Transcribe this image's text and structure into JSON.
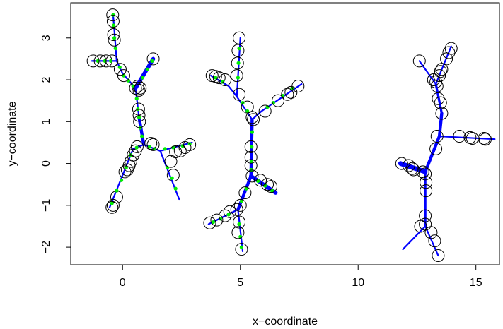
{
  "chart_data": {
    "type": "scatter",
    "title": "",
    "xlabel": "x−coordinate",
    "ylabel": "y−coordinate",
    "xlim": [
      -2.2,
      16.0
    ],
    "ylim": [
      -2.42,
      3.84
    ],
    "x_ticks": [
      0,
      5,
      10,
      15
    ],
    "x_tick_labels": [
      "0",
      "5",
      "10",
      "15"
    ],
    "y_ticks": [
      -2,
      -1,
      0,
      1,
      2,
      3
    ],
    "y_tick_labels": [
      "−2",
      "−1",
      "0",
      "1",
      "2",
      "3"
    ],
    "grid": false,
    "legend": "none",
    "colors": {
      "edge": "#0000ff",
      "dots": "#00ee00",
      "points": "#000000"
    },
    "edges": [
      {
        "x1": -0.4,
        "y1": 3.55,
        "x2": -0.25,
        "y2": 2.45,
        "w": 2
      },
      {
        "x1": -1.3,
        "y1": 2.45,
        "x2": -0.25,
        "y2": 2.45,
        "w": 2
      },
      {
        "x1": -0.25,
        "y1": 2.45,
        "x2": 0.0,
        "y2": 2.15,
        "w": 2
      },
      {
        "x1": 0.0,
        "y1": 2.15,
        "x2": 0.55,
        "y2": 1.8,
        "w": 2
      },
      {
        "x1": 0.55,
        "y1": 1.8,
        "x2": 1.3,
        "y2": 2.5,
        "w": 5
      },
      {
        "x1": 0.55,
        "y1": 1.8,
        "x2": 0.7,
        "y2": 1.1,
        "w": 2
      },
      {
        "x1": 0.7,
        "y1": 1.1,
        "x2": 0.9,
        "y2": 0.45,
        "w": 4
      },
      {
        "x1": 0.9,
        "y1": 0.45,
        "x2": 1.6,
        "y2": 0.3,
        "w": 2
      },
      {
        "x1": 1.6,
        "y1": 0.3,
        "x2": 2.95,
        "y2": 0.5,
        "w": 2
      },
      {
        "x1": 1.6,
        "y1": 0.3,
        "x2": 2.4,
        "y2": -0.85,
        "w": 2
      },
      {
        "x1": 0.9,
        "y1": 0.45,
        "x2": 0.45,
        "y2": 0.35,
        "w": 2
      },
      {
        "x1": 0.45,
        "y1": 0.35,
        "x2": -0.55,
        "y2": -1.05,
        "w": 2
      },
      {
        "x1": 5.0,
        "y1": 3.0,
        "x2": 4.85,
        "y2": 1.6,
        "w": 2
      },
      {
        "x1": 3.75,
        "y1": 2.1,
        "x2": 4.5,
        "y2": 1.85,
        "w": 2
      },
      {
        "x1": 4.5,
        "y1": 1.85,
        "x2": 4.85,
        "y2": 1.6,
        "w": 2
      },
      {
        "x1": 4.85,
        "y1": 1.6,
        "x2": 5.5,
        "y2": 1.05,
        "w": 2
      },
      {
        "x1": 7.6,
        "y1": 1.9,
        "x2": 5.9,
        "y2": 1.25,
        "w": 2
      },
      {
        "x1": 5.9,
        "y1": 1.25,
        "x2": 5.5,
        "y2": 1.05,
        "w": 2
      },
      {
        "x1": 5.5,
        "y1": 1.05,
        "x2": 5.45,
        "y2": -0.3,
        "w": 4
      },
      {
        "x1": 5.45,
        "y1": -0.3,
        "x2": 6.5,
        "y2": -0.7,
        "w": 5
      },
      {
        "x1": 5.45,
        "y1": -0.3,
        "x2": 4.9,
        "y2": -1.1,
        "w": 4
      },
      {
        "x1": 4.9,
        "y1": -1.1,
        "x2": 3.65,
        "y2": -1.45,
        "w": 2
      },
      {
        "x1": 4.9,
        "y1": -1.1,
        "x2": 5.1,
        "y2": -2.1,
        "w": 2
      },
      {
        "x1": 12.6,
        "y1": 2.45,
        "x2": 13.3,
        "y2": 1.9,
        "w": 2
      },
      {
        "x1": 13.95,
        "y1": 2.8,
        "x2": 13.3,
        "y2": 1.9,
        "w": 2
      },
      {
        "x1": 13.3,
        "y1": 1.9,
        "x2": 13.55,
        "y2": 1.2,
        "w": 3
      },
      {
        "x1": 13.55,
        "y1": 1.2,
        "x2": 13.45,
        "y2": 0.65,
        "w": 4
      },
      {
        "x1": 13.45,
        "y1": 0.65,
        "x2": 15.8,
        "y2": 0.58,
        "w": 2
      },
      {
        "x1": 13.45,
        "y1": 0.65,
        "x2": 12.85,
        "y2": -0.2,
        "w": 4
      },
      {
        "x1": 11.8,
        "y1": 0.0,
        "x2": 12.85,
        "y2": -0.2,
        "w": 6
      },
      {
        "x1": 12.85,
        "y1": -0.2,
        "x2": 12.85,
        "y2": -1.5,
        "w": 3
      },
      {
        "x1": 12.85,
        "y1": -1.5,
        "x2": 11.9,
        "y2": -2.05,
        "w": 2
      },
      {
        "x1": 12.85,
        "y1": -1.5,
        "x2": 13.4,
        "y2": -2.2,
        "w": 2
      }
    ],
    "points": [
      {
        "x": -0.42,
        "y": 3.55
      },
      {
        "x": -0.4,
        "y": 3.4
      },
      {
        "x": -0.38,
        "y": 3.08
      },
      {
        "x": -0.35,
        "y": 2.95
      },
      {
        "x": -1.25,
        "y": 2.45
      },
      {
        "x": -0.95,
        "y": 2.45
      },
      {
        "x": -0.7,
        "y": 2.45
      },
      {
        "x": -0.45,
        "y": 2.45
      },
      {
        "x": -0.1,
        "y": 2.25
      },
      {
        "x": 0.05,
        "y": 2.1
      },
      {
        "x": 1.3,
        "y": 2.5
      },
      {
        "x": 0.75,
        "y": 1.8
      },
      {
        "x": 0.65,
        "y": 1.85
      },
      {
        "x": 0.55,
        "y": 1.8
      },
      {
        "x": 0.7,
        "y": 1.75
      },
      {
        "x": 0.68,
        "y": 1.3
      },
      {
        "x": 0.7,
        "y": 1.15
      },
      {
        "x": 0.72,
        "y": 1.0
      },
      {
        "x": 1.2,
        "y": 0.48
      },
      {
        "x": 1.3,
        "y": 0.45
      },
      {
        "x": 0.62,
        "y": 0.4
      },
      {
        "x": 2.85,
        "y": 0.45
      },
      {
        "x": 2.65,
        "y": 0.38
      },
      {
        "x": 2.45,
        "y": 0.3
      },
      {
        "x": 2.25,
        "y": 0.28
      },
      {
        "x": 2.05,
        "y": 0.05
      },
      {
        "x": 2.15,
        "y": -0.28
      },
      {
        "x": 0.55,
        "y": 0.3
      },
      {
        "x": 0.45,
        "y": 0.2
      },
      {
        "x": 0.35,
        "y": 0.05
      },
      {
        "x": 0.28,
        "y": -0.05
      },
      {
        "x": 0.2,
        "y": -0.15
      },
      {
        "x": 0.1,
        "y": -0.2
      },
      {
        "x": -0.25,
        "y": -0.8
      },
      {
        "x": -0.4,
        "y": -1.0
      },
      {
        "x": -0.45,
        "y": -1.05
      },
      {
        "x": 4.95,
        "y": 3.0
      },
      {
        "x": 4.9,
        "y": 2.7
      },
      {
        "x": 4.88,
        "y": 2.4
      },
      {
        "x": 4.85,
        "y": 2.1
      },
      {
        "x": 3.8,
        "y": 2.1
      },
      {
        "x": 3.95,
        "y": 2.08
      },
      {
        "x": 4.1,
        "y": 2.05
      },
      {
        "x": 4.35,
        "y": 2.0
      },
      {
        "x": 4.95,
        "y": 1.65
      },
      {
        "x": 5.3,
        "y": 1.35
      },
      {
        "x": 7.45,
        "y": 1.85
      },
      {
        "x": 7.15,
        "y": 1.7
      },
      {
        "x": 7.0,
        "y": 1.65
      },
      {
        "x": 6.6,
        "y": 1.5
      },
      {
        "x": 6.05,
        "y": 1.25
      },
      {
        "x": 5.5,
        "y": 1.1
      },
      {
        "x": 5.55,
        "y": 1.05
      },
      {
        "x": 5.45,
        "y": 0.4
      },
      {
        "x": 5.45,
        "y": 0.15
      },
      {
        "x": 5.45,
        "y": -0.05
      },
      {
        "x": 5.5,
        "y": -0.3
      },
      {
        "x": 5.85,
        "y": -0.4
      },
      {
        "x": 6.15,
        "y": -0.5
      },
      {
        "x": 6.3,
        "y": -0.55
      },
      {
        "x": 5.2,
        "y": -0.7
      },
      {
        "x": 5.0,
        "y": -1.0
      },
      {
        "x": 4.85,
        "y": -1.1
      },
      {
        "x": 4.55,
        "y": -1.15
      },
      {
        "x": 4.35,
        "y": -1.25
      },
      {
        "x": 4.0,
        "y": -1.35
      },
      {
        "x": 3.7,
        "y": -1.42
      },
      {
        "x": 4.95,
        "y": -1.4
      },
      {
        "x": 4.9,
        "y": -1.65
      },
      {
        "x": 5.05,
        "y": -2.05
      },
      {
        "x": 12.6,
        "y": 2.45
      },
      {
        "x": 13.95,
        "y": 2.75
      },
      {
        "x": 13.85,
        "y": 2.65
      },
      {
        "x": 13.75,
        "y": 2.5
      },
      {
        "x": 13.55,
        "y": 2.25
      },
      {
        "x": 13.5,
        "y": 2.2
      },
      {
        "x": 13.45,
        "y": 2.1
      },
      {
        "x": 13.2,
        "y": 2.0
      },
      {
        "x": 13.3,
        "y": 1.95
      },
      {
        "x": 13.35,
        "y": 1.85
      },
      {
        "x": 13.4,
        "y": 1.55
      },
      {
        "x": 13.5,
        "y": 1.45
      },
      {
        "x": 13.55,
        "y": 1.2
      },
      {
        "x": 14.3,
        "y": 0.65
      },
      {
        "x": 14.75,
        "y": 0.62
      },
      {
        "x": 14.85,
        "y": 0.6
      },
      {
        "x": 15.35,
        "y": 0.6
      },
      {
        "x": 15.4,
        "y": 0.58
      },
      {
        "x": 13.35,
        "y": 0.65
      },
      {
        "x": 13.3,
        "y": 0.35
      },
      {
        "x": 11.85,
        "y": 0.0
      },
      {
        "x": 12.15,
        "y": -0.05
      },
      {
        "x": 12.3,
        "y": -0.12
      },
      {
        "x": 12.35,
        "y": -0.15
      },
      {
        "x": 12.75,
        "y": -0.2
      },
      {
        "x": 12.85,
        "y": -0.25
      },
      {
        "x": 12.88,
        "y": -0.45
      },
      {
        "x": 12.88,
        "y": -0.65
      },
      {
        "x": 12.85,
        "y": -1.25
      },
      {
        "x": 12.85,
        "y": -1.45
      },
      {
        "x": 12.65,
        "y": -1.5
      },
      {
        "x": 13.1,
        "y": -1.65
      },
      {
        "x": 13.25,
        "y": -1.85
      },
      {
        "x": 13.4,
        "y": -2.2
      }
    ],
    "dots": [
      {
        "x": -0.4,
        "y": 3.55
      },
      {
        "x": -0.38,
        "y": 3.3
      },
      {
        "x": -0.35,
        "y": 3.0
      },
      {
        "x": -0.3,
        "y": 2.75
      },
      {
        "x": -1.05,
        "y": 2.45
      },
      {
        "x": -0.75,
        "y": 2.45
      },
      {
        "x": -0.5,
        "y": 2.45
      },
      {
        "x": -0.12,
        "y": 2.3
      },
      {
        "x": 0.05,
        "y": 2.1
      },
      {
        "x": 0.25,
        "y": 1.98
      },
      {
        "x": 0.45,
        "y": 1.85
      },
      {
        "x": 0.85,
        "y": 2.05
      },
      {
        "x": 1.05,
        "y": 2.25
      },
      {
        "x": 1.25,
        "y": 2.45
      },
      {
        "x": 0.6,
        "y": 1.55
      },
      {
        "x": 0.65,
        "y": 1.3
      },
      {
        "x": 0.7,
        "y": 1.1
      },
      {
        "x": 0.75,
        "y": 0.85
      },
      {
        "x": 0.82,
        "y": 0.65
      },
      {
        "x": 1.15,
        "y": 0.4
      },
      {
        "x": 1.35,
        "y": 0.35
      },
      {
        "x": 1.8,
        "y": 0.35
      },
      {
        "x": 2.15,
        "y": 0.38
      },
      {
        "x": 2.55,
        "y": 0.42
      },
      {
        "x": 2.85,
        "y": 0.47
      },
      {
        "x": 1.9,
        "y": -0.1
      },
      {
        "x": 2.1,
        "y": -0.35
      },
      {
        "x": 2.25,
        "y": -0.6
      },
      {
        "x": 0.6,
        "y": 0.38
      },
      {
        "x": 0.35,
        "y": 0.2
      },
      {
        "x": 0.15,
        "y": -0.1
      },
      {
        "x": -0.05,
        "y": -0.4
      },
      {
        "x": -0.25,
        "y": -0.65
      },
      {
        "x": -0.45,
        "y": -0.95
      },
      {
        "x": 4.95,
        "y": 2.75
      },
      {
        "x": 4.92,
        "y": 2.4
      },
      {
        "x": 4.9,
        "y": 2.05
      },
      {
        "x": 3.95,
        "y": 2.05
      },
      {
        "x": 4.25,
        "y": 1.95
      },
      {
        "x": 5.1,
        "y": 1.45
      },
      {
        "x": 5.3,
        "y": 1.25
      },
      {
        "x": 7.2,
        "y": 1.8
      },
      {
        "x": 6.8,
        "y": 1.62
      },
      {
        "x": 6.4,
        "y": 1.45
      },
      {
        "x": 6.15,
        "y": 1.35
      },
      {
        "x": 5.5,
        "y": 0.75
      },
      {
        "x": 5.48,
        "y": 0.4
      },
      {
        "x": 5.47,
        "y": 0.05
      },
      {
        "x": 5.46,
        "y": -0.15
      },
      {
        "x": 5.75,
        "y": -0.42
      },
      {
        "x": 6.05,
        "y": -0.53
      },
      {
        "x": 6.35,
        "y": -0.65
      },
      {
        "x": 5.25,
        "y": -0.6
      },
      {
        "x": 5.05,
        "y": -0.9
      },
      {
        "x": 4.5,
        "y": -1.22
      },
      {
        "x": 4.15,
        "y": -1.32
      },
      {
        "x": 3.85,
        "y": -1.4
      },
      {
        "x": 4.95,
        "y": -1.45
      },
      {
        "x": 5.0,
        "y": -1.75
      },
      {
        "x": 5.05,
        "y": -2.0
      }
    ]
  }
}
